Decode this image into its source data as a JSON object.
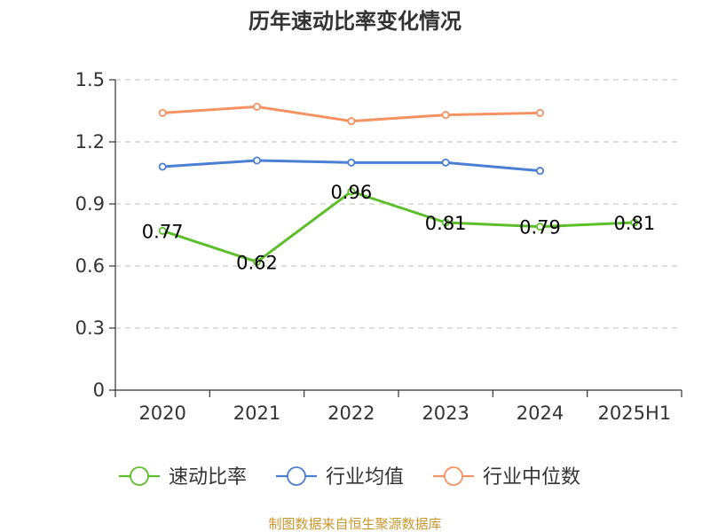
{
  "chart_data": {
    "type": "line",
    "title": "历年速动比率变化情况",
    "categories": [
      "2020",
      "2021",
      "2022",
      "2023",
      "2024",
      "2025H1"
    ],
    "ylim": [
      0,
      1.5
    ],
    "yticks": [
      "0",
      "0.3",
      "0.6",
      "0.9",
      "1.2",
      "1.5"
    ],
    "grid": true,
    "legend_position": "bottom",
    "series": [
      {
        "name": "速动比率",
        "color": "#5cbf2a",
        "values": [
          0.77,
          0.62,
          0.96,
          0.81,
          0.79,
          0.81
        ],
        "labels": [
          "0.77",
          "0.62",
          "0.96",
          "0.81",
          "0.79",
          "0.81"
        ]
      },
      {
        "name": "行业均值",
        "color": "#4a7fd4",
        "values": [
          1.08,
          1.11,
          1.1,
          1.1,
          1.06,
          null
        ]
      },
      {
        "name": "行业中位数",
        "color": "#f59262",
        "values": [
          1.34,
          1.37,
          1.3,
          1.33,
          1.34,
          null
        ]
      }
    ]
  },
  "source": "制图数据来自恒生聚源数据库"
}
